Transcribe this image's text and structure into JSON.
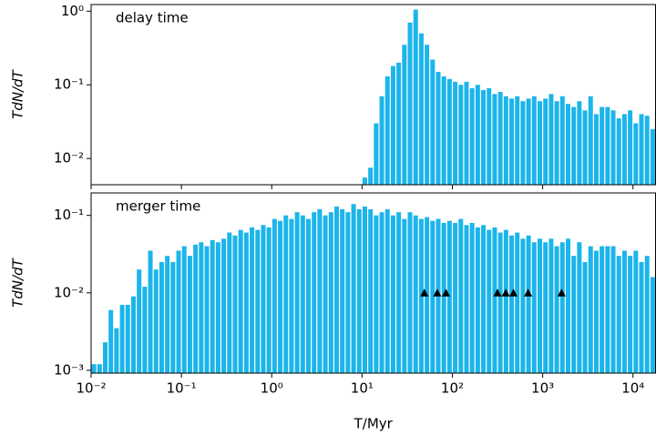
{
  "chart_data": [
    {
      "type": "histogram",
      "annotation": "delay time",
      "ylabel": "TdN/dT",
      "color": "#1bb5ea",
      "log_x": true,
      "log_y": true,
      "bins": [
        0.01,
        0.01155,
        0.01334,
        0.0154,
        0.01778,
        0.02054,
        0.02371,
        0.02738,
        0.03162,
        0.03652,
        0.04217,
        0.0487,
        0.05623,
        0.06494,
        0.07499,
        0.0866,
        0.1,
        0.1155,
        0.1334,
        0.154,
        0.1778,
        0.2054,
        0.2371,
        0.2738,
        0.3162,
        0.3652,
        0.4217,
        0.487,
        0.5623,
        0.6494,
        0.7499,
        0.866,
        1,
        1.155,
        1.334,
        1.54,
        1.778,
        2.054,
        2.371,
        2.738,
        3.162,
        3.652,
        4.217,
        4.87,
        5.623,
        6.494,
        7.499,
        8.66,
        10,
        11.55,
        13.34,
        15.4,
        17.78,
        20.54,
        23.71,
        27.38,
        31.62,
        36.52,
        42.17,
        48.7,
        56.23,
        64.94,
        74.99,
        86.6,
        100,
        115.5,
        133.4,
        154,
        177.8,
        205.4,
        237.1,
        273.8,
        316.2,
        365.2,
        421.7,
        487,
        562.3,
        649.4,
        749.9,
        866,
        1000,
        1155,
        1334,
        1540,
        1778,
        2054,
        2371,
        2738,
        3162,
        3652,
        4217,
        4870,
        5623,
        6494,
        7499,
        8660,
        10000,
        11550,
        13340,
        15400,
        17780
      ],
      "values": [
        0,
        0,
        0,
        0,
        0,
        0,
        0,
        0,
        0,
        0,
        0,
        0,
        0,
        0,
        0,
        0,
        0,
        0,
        0,
        0,
        0,
        0,
        0,
        0,
        0,
        0,
        0,
        0,
        0,
        0,
        0,
        0,
        0,
        0,
        0,
        0,
        0,
        0,
        0,
        0,
        0,
        0,
        0,
        0,
        0,
        0,
        0,
        0,
        0.0055,
        0.0075,
        0.03,
        0.07,
        0.13,
        0.18,
        0.2,
        0.35,
        0.7,
        1.05,
        0.5,
        0.35,
        0.22,
        0.15,
        0.13,
        0.12,
        0.11,
        0.1,
        0.11,
        0.09,
        0.1,
        0.085,
        0.09,
        0.075,
        0.08,
        0.07,
        0.065,
        0.07,
        0.06,
        0.065,
        0.07,
        0.06,
        0.065,
        0.075,
        0.06,
        0.07,
        0.055,
        0.05,
        0.06,
        0.045,
        0.07,
        0.04,
        0.05,
        0.05,
        0.045,
        0.035,
        0.04,
        0.045,
        0.03,
        0.04,
        0.038,
        0.025
      ],
      "xlim": [
        0.01,
        17780
      ],
      "xticks": [
        0.01,
        0.1,
        1,
        10,
        100,
        1000,
        10000
      ],
      "ylim": [
        0.0044,
        1.23
      ],
      "yticks": [
        {
          "value": 1,
          "label": "10⁰"
        },
        {
          "value": 0.1,
          "label": "10⁻¹"
        },
        {
          "value": 0.01,
          "label": "10⁻²"
        }
      ]
    },
    {
      "type": "histogram",
      "annotation": "merger time",
      "ylabel": "TdN/dT",
      "xlabel": "T/Myr",
      "color": "#1bb5ea",
      "log_x": true,
      "log_y": true,
      "bins": [
        0.01,
        0.01155,
        0.01334,
        0.0154,
        0.01778,
        0.02054,
        0.02371,
        0.02738,
        0.03162,
        0.03652,
        0.04217,
        0.0487,
        0.05623,
        0.06494,
        0.07499,
        0.0866,
        0.1,
        0.1155,
        0.1334,
        0.154,
        0.1778,
        0.2054,
        0.2371,
        0.2738,
        0.3162,
        0.3652,
        0.4217,
        0.487,
        0.5623,
        0.6494,
        0.7499,
        0.866,
        1,
        1.155,
        1.334,
        1.54,
        1.778,
        2.054,
        2.371,
        2.738,
        3.162,
        3.652,
        4.217,
        4.87,
        5.623,
        6.494,
        7.499,
        8.66,
        10,
        11.55,
        13.34,
        15.4,
        17.78,
        20.54,
        23.71,
        27.38,
        31.62,
        36.52,
        42.17,
        48.7,
        56.23,
        64.94,
        74.99,
        86.6,
        100,
        115.5,
        133.4,
        154,
        177.8,
        205.4,
        237.1,
        273.8,
        316.2,
        365.2,
        421.7,
        487,
        562.3,
        649.4,
        749.9,
        866,
        1000,
        1155,
        1334,
        1540,
        1778,
        2054,
        2371,
        2738,
        3162,
        3652,
        4217,
        4870,
        5623,
        6494,
        7499,
        8660,
        10000,
        11550,
        13340,
        15400,
        17780
      ],
      "values": [
        0.0012,
        0.0012,
        0.0023,
        0.006,
        0.0035,
        0.007,
        0.007,
        0.009,
        0.02,
        0.012,
        0.035,
        0.02,
        0.025,
        0.03,
        0.025,
        0.035,
        0.04,
        0.03,
        0.042,
        0.045,
        0.04,
        0.048,
        0.045,
        0.05,
        0.06,
        0.055,
        0.065,
        0.06,
        0.07,
        0.065,
        0.075,
        0.07,
        0.09,
        0.085,
        0.1,
        0.09,
        0.11,
        0.1,
        0.09,
        0.11,
        0.12,
        0.1,
        0.11,
        0.13,
        0.12,
        0.11,
        0.14,
        0.12,
        0.13,
        0.12,
        0.1,
        0.11,
        0.12,
        0.1,
        0.11,
        0.09,
        0.11,
        0.1,
        0.09,
        0.095,
        0.085,
        0.09,
        0.08,
        0.085,
        0.08,
        0.09,
        0.075,
        0.08,
        0.07,
        0.075,
        0.065,
        0.07,
        0.06,
        0.065,
        0.055,
        0.06,
        0.05,
        0.055,
        0.045,
        0.05,
        0.045,
        0.05,
        0.04,
        0.045,
        0.05,
        0.03,
        0.045,
        0.025,
        0.04,
        0.035,
        0.04,
        0.04,
        0.04,
        0.03,
        0.035,
        0.03,
        0.035,
        0.025,
        0.03,
        0.016
      ],
      "markers": {
        "color": "#000000",
        "x": [
          49,
          68,
          85,
          316,
          390,
          475,
          690,
          1620
        ],
        "y": [
          0.01,
          0.01,
          0.01,
          0.01,
          0.01,
          0.01,
          0.01,
          0.01
        ]
      },
      "xlim": [
        0.01,
        17780
      ],
      "xticks": [
        {
          "value": 0.01,
          "label": "10⁻²"
        },
        {
          "value": 0.1,
          "label": "10⁻¹"
        },
        {
          "value": 1,
          "label": "10⁰"
        },
        {
          "value": 10,
          "label": "10¹"
        },
        {
          "value": 100,
          "label": "10²"
        },
        {
          "value": 1000,
          "label": "10³"
        },
        {
          "value": 10000,
          "label": "10⁴"
        }
      ],
      "ylim": [
        0.00092,
        0.195
      ],
      "yticks": [
        {
          "value": 0.1,
          "label": "10⁻¹"
        },
        {
          "value": 0.01,
          "label": "10⁻²"
        },
        {
          "value": 0.001,
          "label": "10⁻³"
        }
      ]
    }
  ]
}
